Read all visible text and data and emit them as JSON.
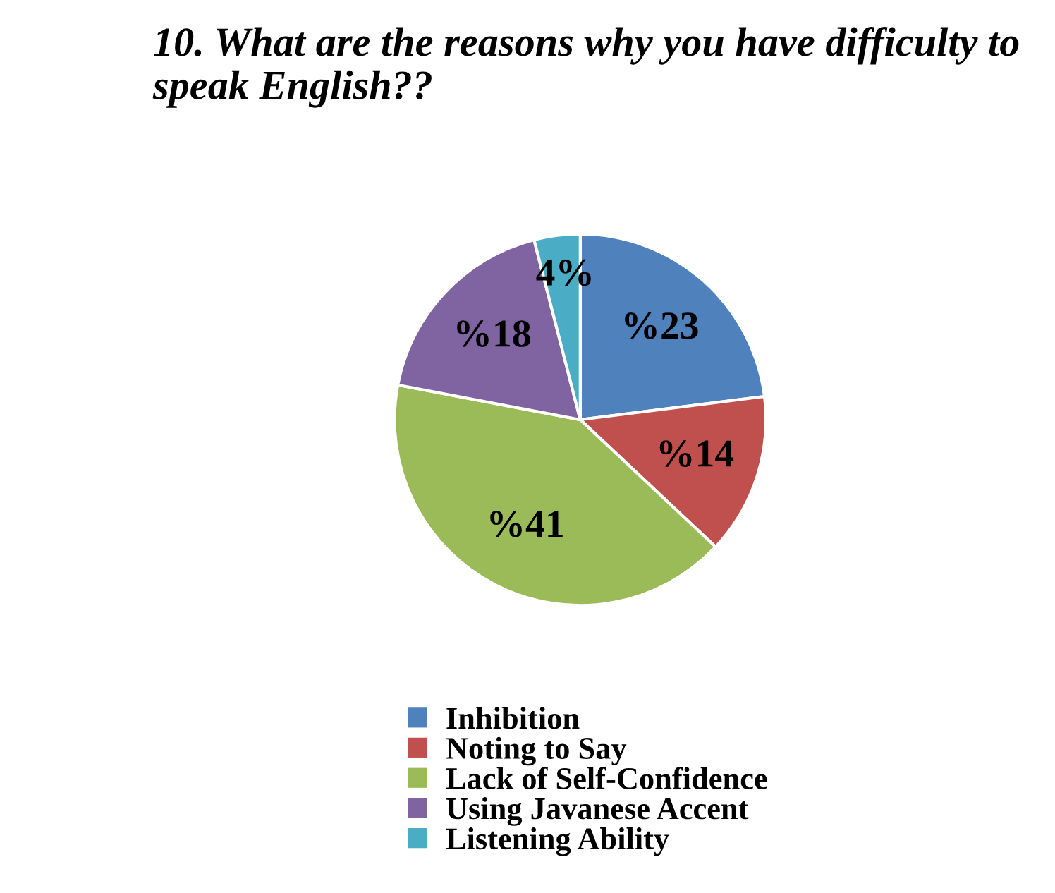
{
  "chart_data": {
    "type": "pie",
    "title": "10. What are the reasons why you have difficulty to speak English??",
    "categories": [
      "Inhibition",
      "Noting to Say",
      "Lack of Self-Confidence",
      "Using Javanese Accent",
      "Listening Ability"
    ],
    "values": [
      23,
      14,
      41,
      18,
      4
    ],
    "colors": [
      "#4f81bd",
      "#c0504d",
      "#9bbb59",
      "#8064a2",
      "#4bacc6"
    ],
    "value_labels": [
      "%23",
      "%14",
      "%41",
      "%18",
      "4%"
    ],
    "legend": "bottom"
  }
}
